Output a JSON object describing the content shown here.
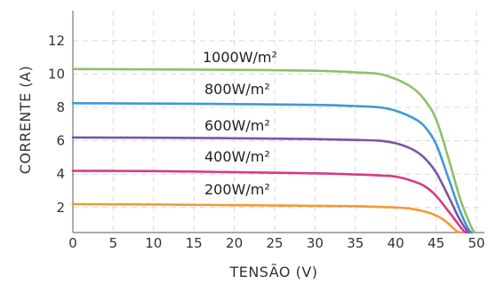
{
  "chart_data": {
    "type": "line",
    "xlabel": "TENSÃO (V)",
    "ylabel": "CORRENTE (A)",
    "xlim": [
      0,
      50
    ],
    "ylim": [
      0.5,
      13.8
    ],
    "xticks": [
      0,
      5,
      10,
      15,
      20,
      25,
      30,
      35,
      40,
      45,
      50
    ],
    "yticks": [
      2,
      4,
      6,
      8,
      10,
      12
    ],
    "grid": true,
    "series": [
      {
        "name": "1000W/m²",
        "color": "#8dc06a",
        "x": [
          0,
          10,
          20,
          30,
          35,
          38,
          40,
          42,
          43.5,
          45,
          46.5,
          48,
          49.3,
          49.8
        ],
        "y": [
          10.3,
          10.28,
          10.25,
          10.2,
          10.1,
          10.0,
          9.7,
          9.2,
          8.5,
          7.3,
          5.0,
          2.5,
          0.9,
          0.5
        ]
      },
      {
        "name": "800W/m²",
        "color": "#3d9ad6",
        "x": [
          0,
          10,
          20,
          30,
          35,
          38,
          40,
          42,
          43.5,
          45,
          46.5,
          47.8,
          48.9,
          49.4
        ],
        "y": [
          8.25,
          8.23,
          8.2,
          8.15,
          8.08,
          8.0,
          7.8,
          7.4,
          6.9,
          5.8,
          3.8,
          2.0,
          0.8,
          0.5
        ]
      },
      {
        "name": "600W/m²",
        "color": "#7b54a6",
        "x": [
          0,
          10,
          20,
          30,
          35,
          38,
          40,
          42,
          43.5,
          45,
          46.5,
          47.8,
          48.7,
          49.1
        ],
        "y": [
          6.2,
          6.18,
          6.15,
          6.1,
          6.05,
          6.0,
          5.85,
          5.5,
          5.0,
          4.1,
          2.7,
          1.4,
          0.7,
          0.5
        ]
      },
      {
        "name": "400W/m²",
        "color": "#d63a83",
        "x": [
          0,
          10,
          20,
          30,
          35,
          38,
          40,
          42,
          43.5,
          45,
          46.5,
          47.6,
          48.4,
          48.8
        ],
        "y": [
          4.2,
          4.18,
          4.12,
          4.05,
          3.98,
          3.92,
          3.85,
          3.6,
          3.3,
          2.7,
          1.8,
          1.1,
          0.6,
          0.5
        ]
      },
      {
        "name": "200W/m²",
        "color": "#f29a33",
        "x": [
          0,
          10,
          20,
          30,
          35,
          37,
          40,
          42,
          44,
          45.5,
          46.6,
          47.5,
          48.0
        ],
        "y": [
          2.2,
          2.18,
          2.14,
          2.1,
          2.08,
          2.05,
          2.0,
          1.92,
          1.7,
          1.4,
          1.0,
          0.6,
          0.5
        ]
      }
    ]
  }
}
